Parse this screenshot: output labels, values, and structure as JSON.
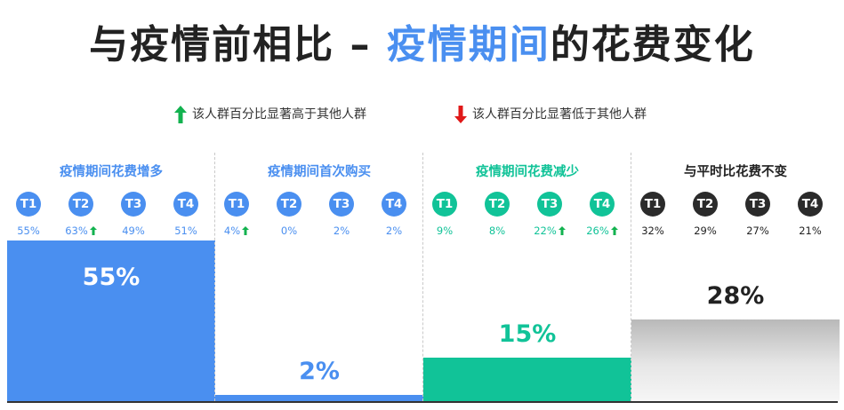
{
  "title": {
    "part1": "与疫情前相比 – ",
    "highlight": "疫情期间",
    "part2": "的花费变化"
  },
  "legend": {
    "up": {
      "label": "该人群百分比显著高于其他人群",
      "color": "#12b24f"
    },
    "down": {
      "label": "该人群百分比显著低于其他人群",
      "color": "#e01818"
    }
  },
  "badge_labels": [
    "T1",
    "T2",
    "T3",
    "T4"
  ],
  "chart_data": {
    "type": "bar",
    "categories": [
      "疫情期间花费增多",
      "疫情期间首次购买",
      "疫情期间花费减少",
      "与平时比花费不变"
    ],
    "values": [
      55,
      2,
      15,
      28
    ],
    "value_labels": [
      "55%",
      "2%",
      "15%",
      "28%"
    ],
    "ylim": [
      0,
      100
    ],
    "colors": [
      "#4a8ff0",
      "#4a8ff0",
      "#11c398",
      "#2b2b2b"
    ],
    "tiers": [
      "T1",
      "T2",
      "T3",
      "T4"
    ],
    "tier_values": [
      [
        55,
        63,
        49,
        51
      ],
      [
        4,
        0,
        2,
        2
      ],
      [
        9,
        8,
        22,
        26
      ],
      [
        32,
        29,
        27,
        21
      ]
    ],
    "tier_labels": [
      [
        "55%",
        "63%",
        "49%",
        "51%"
      ],
      [
        "4%",
        "0%",
        "2%",
        "2%"
      ],
      [
        "9%",
        "8%",
        "22%",
        "26%"
      ],
      [
        "32%",
        "29%",
        "27%",
        "21%"
      ]
    ],
    "significance": [
      [
        "",
        "up",
        "",
        ""
      ],
      [
        "up",
        "",
        "",
        ""
      ],
      [
        "",
        "",
        "up",
        "up"
      ],
      [
        "",
        "",
        "",
        ""
      ]
    ]
  }
}
